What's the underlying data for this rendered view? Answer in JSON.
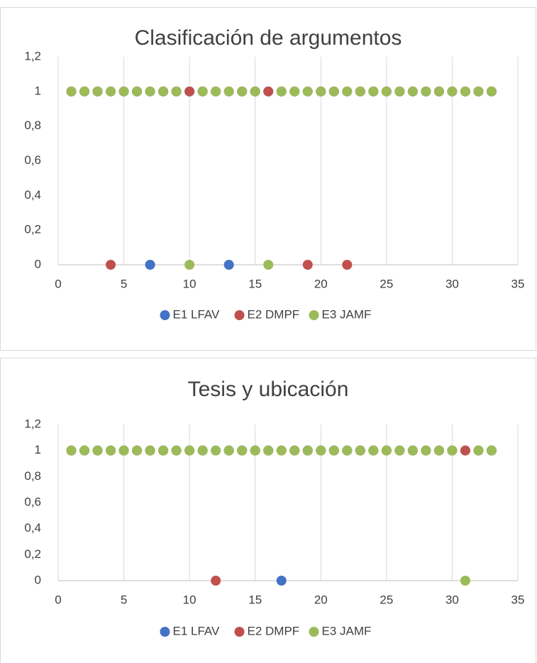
{
  "chart_data": [
    {
      "type": "scatter",
      "title": "Clasificación de argumentos",
      "x": [
        1,
        2,
        3,
        4,
        5,
        6,
        7,
        8,
        9,
        10,
        11,
        12,
        13,
        14,
        15,
        16,
        17,
        18,
        19,
        20,
        21,
        22,
        23,
        24,
        25,
        26,
        27,
        28,
        29,
        30,
        31,
        32,
        33
      ],
      "series": [
        {
          "name": "E1 LFAV",
          "color": "#4472c4",
          "values": [
            1,
            1,
            1,
            1,
            1,
            1,
            0,
            1,
            1,
            1,
            1,
            1,
            0,
            1,
            1,
            1,
            1,
            1,
            1,
            1,
            1,
            1,
            1,
            1,
            1,
            1,
            1,
            1,
            1,
            1,
            1,
            1,
            1
          ]
        },
        {
          "name": "E2 DMPF",
          "color": "#c0504d",
          "values": [
            1,
            1,
            1,
            0,
            1,
            1,
            1,
            1,
            1,
            1,
            1,
            1,
            1,
            1,
            1,
            1,
            1,
            1,
            0,
            1,
            1,
            0,
            1,
            1,
            1,
            1,
            1,
            1,
            1,
            1,
            1,
            1,
            1
          ]
        },
        {
          "name": "E3 JAMF",
          "color": "#9bbb59",
          "values": [
            1,
            1,
            1,
            1,
            1,
            1,
            1,
            1,
            1,
            0,
            1,
            1,
            1,
            1,
            1,
            0,
            1,
            1,
            1,
            1,
            1,
            1,
            1,
            1,
            1,
            1,
            1,
            1,
            1,
            1,
            1,
            1,
            1
          ]
        }
      ],
      "xlim": [
        0,
        35
      ],
      "xticks": [
        0,
        5,
        10,
        15,
        20,
        25,
        30,
        35
      ],
      "ylim": [
        0,
        1.2
      ],
      "yticks": [
        0,
        {
          "value": 0.2,
          "label": "0,2"
        },
        {
          "value": 0.4,
          "label": "0,4"
        },
        {
          "value": 0.6,
          "label": "0,6"
        },
        {
          "value": 0.8,
          "label": "0,8"
        },
        1,
        {
          "value": 1.2,
          "label": "1,2"
        }
      ],
      "grid": "x",
      "legend": "bottom"
    },
    {
      "type": "scatter",
      "title": "Tesis y ubicación",
      "x": [
        1,
        2,
        3,
        4,
        5,
        6,
        7,
        8,
        9,
        10,
        11,
        12,
        13,
        14,
        15,
        16,
        17,
        18,
        19,
        20,
        21,
        22,
        23,
        24,
        25,
        26,
        27,
        28,
        29,
        30,
        31,
        32,
        33
      ],
      "series": [
        {
          "name": "E1 LFAV",
          "color": "#4472c4",
          "values": [
            1,
            1,
            1,
            1,
            1,
            1,
            1,
            1,
            1,
            1,
            1,
            1,
            1,
            1,
            1,
            1,
            0,
            1,
            1,
            1,
            1,
            1,
            1,
            1,
            1,
            1,
            1,
            1,
            1,
            1,
            1,
            1,
            1
          ]
        },
        {
          "name": "E2 DMPF",
          "color": "#c0504d",
          "values": [
            1,
            1,
            1,
            1,
            1,
            1,
            1,
            1,
            1,
            1,
            1,
            0,
            1,
            1,
            1,
            1,
            1,
            1,
            1,
            1,
            1,
            1,
            1,
            1,
            1,
            1,
            1,
            1,
            1,
            1,
            1,
            1,
            1
          ]
        },
        {
          "name": "E3 JAMF",
          "color": "#9bbb59",
          "values": [
            1,
            1,
            1,
            1,
            1,
            1,
            1,
            1,
            1,
            1,
            1,
            1,
            1,
            1,
            1,
            1,
            1,
            1,
            1,
            1,
            1,
            1,
            1,
            1,
            1,
            1,
            1,
            1,
            1,
            1,
            0,
            1,
            1
          ]
        }
      ],
      "xlim": [
        0,
        35
      ],
      "xticks": [
        0,
        5,
        10,
        15,
        20,
        25,
        30,
        35
      ],
      "ylim": [
        0,
        1.2
      ],
      "yticks": [
        0,
        {
          "value": 0.2,
          "label": "0,2"
        },
        {
          "value": 0.4,
          "label": "0,4"
        },
        {
          "value": 0.6,
          "label": "0,6"
        },
        {
          "value": 0.8,
          "label": "0,8"
        },
        1,
        {
          "value": 1.2,
          "label": "1,2"
        }
      ],
      "grid": "x",
      "legend": "bottom"
    }
  ]
}
